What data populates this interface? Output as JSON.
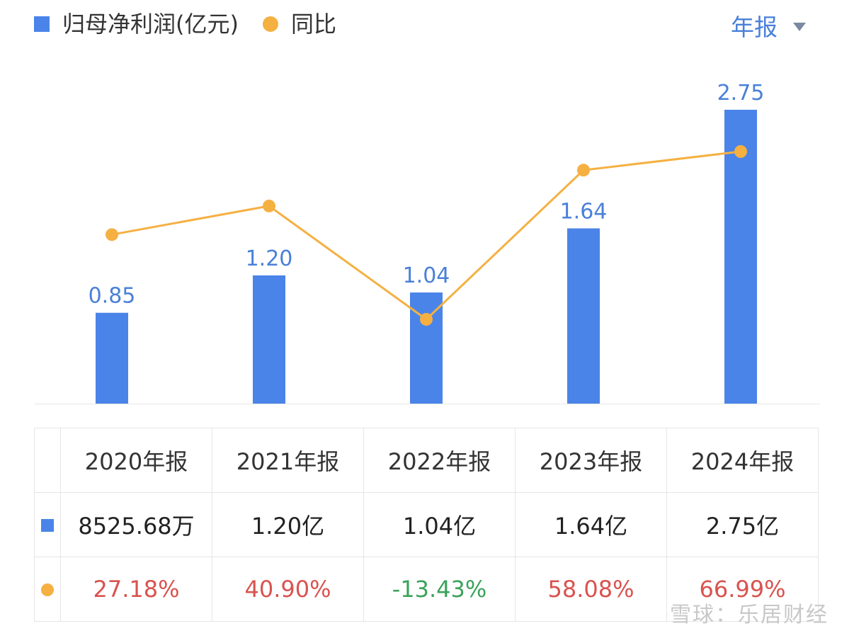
{
  "legend": {
    "bar_label": "归母净利润(亿元)",
    "line_label": "同比"
  },
  "period_selector": {
    "label": "年报"
  },
  "chart_data": {
    "type": "bar",
    "categories": [
      "2020年报",
      "2021年报",
      "2022年报",
      "2023年报",
      "2024年报"
    ],
    "series": [
      {
        "name": "归母净利润(亿元)",
        "type": "bar",
        "values": [
          0.85,
          1.2,
          1.04,
          1.64,
          2.75
        ],
        "labels": [
          "0.85",
          "1.20",
          "1.04",
          "1.64",
          "2.75"
        ]
      },
      {
        "name": "同比",
        "type": "line",
        "values": [
          27.18,
          40.9,
          -13.43,
          58.08,
          66.99
        ]
      }
    ],
    "colors": {
      "bar": "#4a84e8",
      "line": "#f5b042",
      "bar_label": "#4a80d8",
      "positive": "#d9534f",
      "negative": "#3aa35b"
    }
  },
  "table": {
    "headers": [
      "2020年报",
      "2021年报",
      "2022年报",
      "2023年报",
      "2024年报"
    ],
    "profit_row": [
      "8525.68万",
      "1.20亿",
      "1.04亿",
      "1.64亿",
      "2.75亿"
    ],
    "yoy_row": [
      "27.18%",
      "40.90%",
      "-13.43%",
      "58.08%",
      "66.99%"
    ]
  },
  "watermark": "雪球：乐居财经"
}
